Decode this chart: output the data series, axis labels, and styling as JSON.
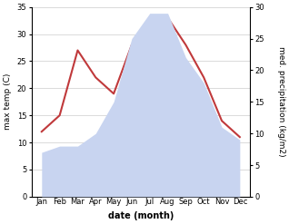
{
  "months": [
    "Jan",
    "Feb",
    "Mar",
    "Apr",
    "May",
    "Jun",
    "Jul",
    "Aug",
    "Sep",
    "Oct",
    "Nov",
    "Dec"
  ],
  "temp": [
    12,
    15,
    27,
    22,
    19,
    28,
    33,
    33,
    28,
    22,
    14,
    11
  ],
  "precip": [
    7,
    8,
    8,
    10,
    15,
    25,
    29,
    29,
    22,
    18,
    11,
    9
  ],
  "temp_color": "#c0393b",
  "precip_fill_color": "#c8d4f0",
  "temp_ylim": [
    0,
    35
  ],
  "precip_ylim": [
    0,
    30
  ],
  "temp_yticks": [
    0,
    5,
    10,
    15,
    20,
    25,
    30,
    35
  ],
  "precip_yticks": [
    0,
    5,
    10,
    15,
    20,
    25,
    30
  ],
  "xlabel": "date (month)",
  "ylabel_left": "max temp (C)",
  "ylabel_right": "med. precipitation (kg/m2)",
  "bg_color": "#ffffff",
  "grid_color": "#cccccc",
  "label_fontsize": 6.5,
  "tick_fontsize": 6.0,
  "xlabel_fontsize": 7.0,
  "line_width": 1.5
}
